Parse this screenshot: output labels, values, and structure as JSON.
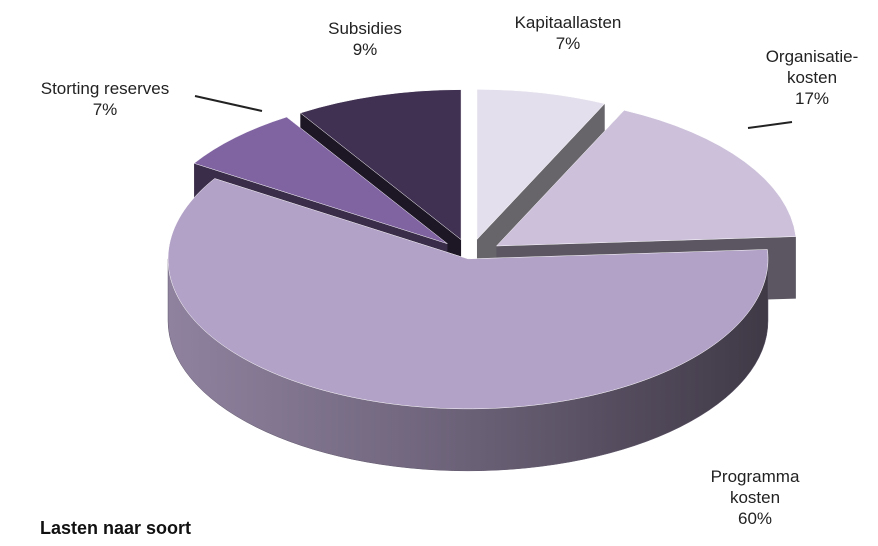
{
  "chart_data": {
    "type": "pie",
    "title": "Lasten naar soort",
    "categories": [
      "Kapitaallasten",
      "Organisatie-\nkosten",
      "Programma\nkosten",
      "Storting reserves",
      "Subsidies"
    ],
    "values": [
      7,
      17,
      60,
      7,
      9
    ],
    "value_labels": [
      "7%",
      "17%",
      "60%",
      "7%",
      "9%"
    ],
    "colors": [
      "#e4dfec",
      "#ccc0da",
      "#b3a2c7",
      "#8064a2",
      "#403152"
    ]
  }
}
